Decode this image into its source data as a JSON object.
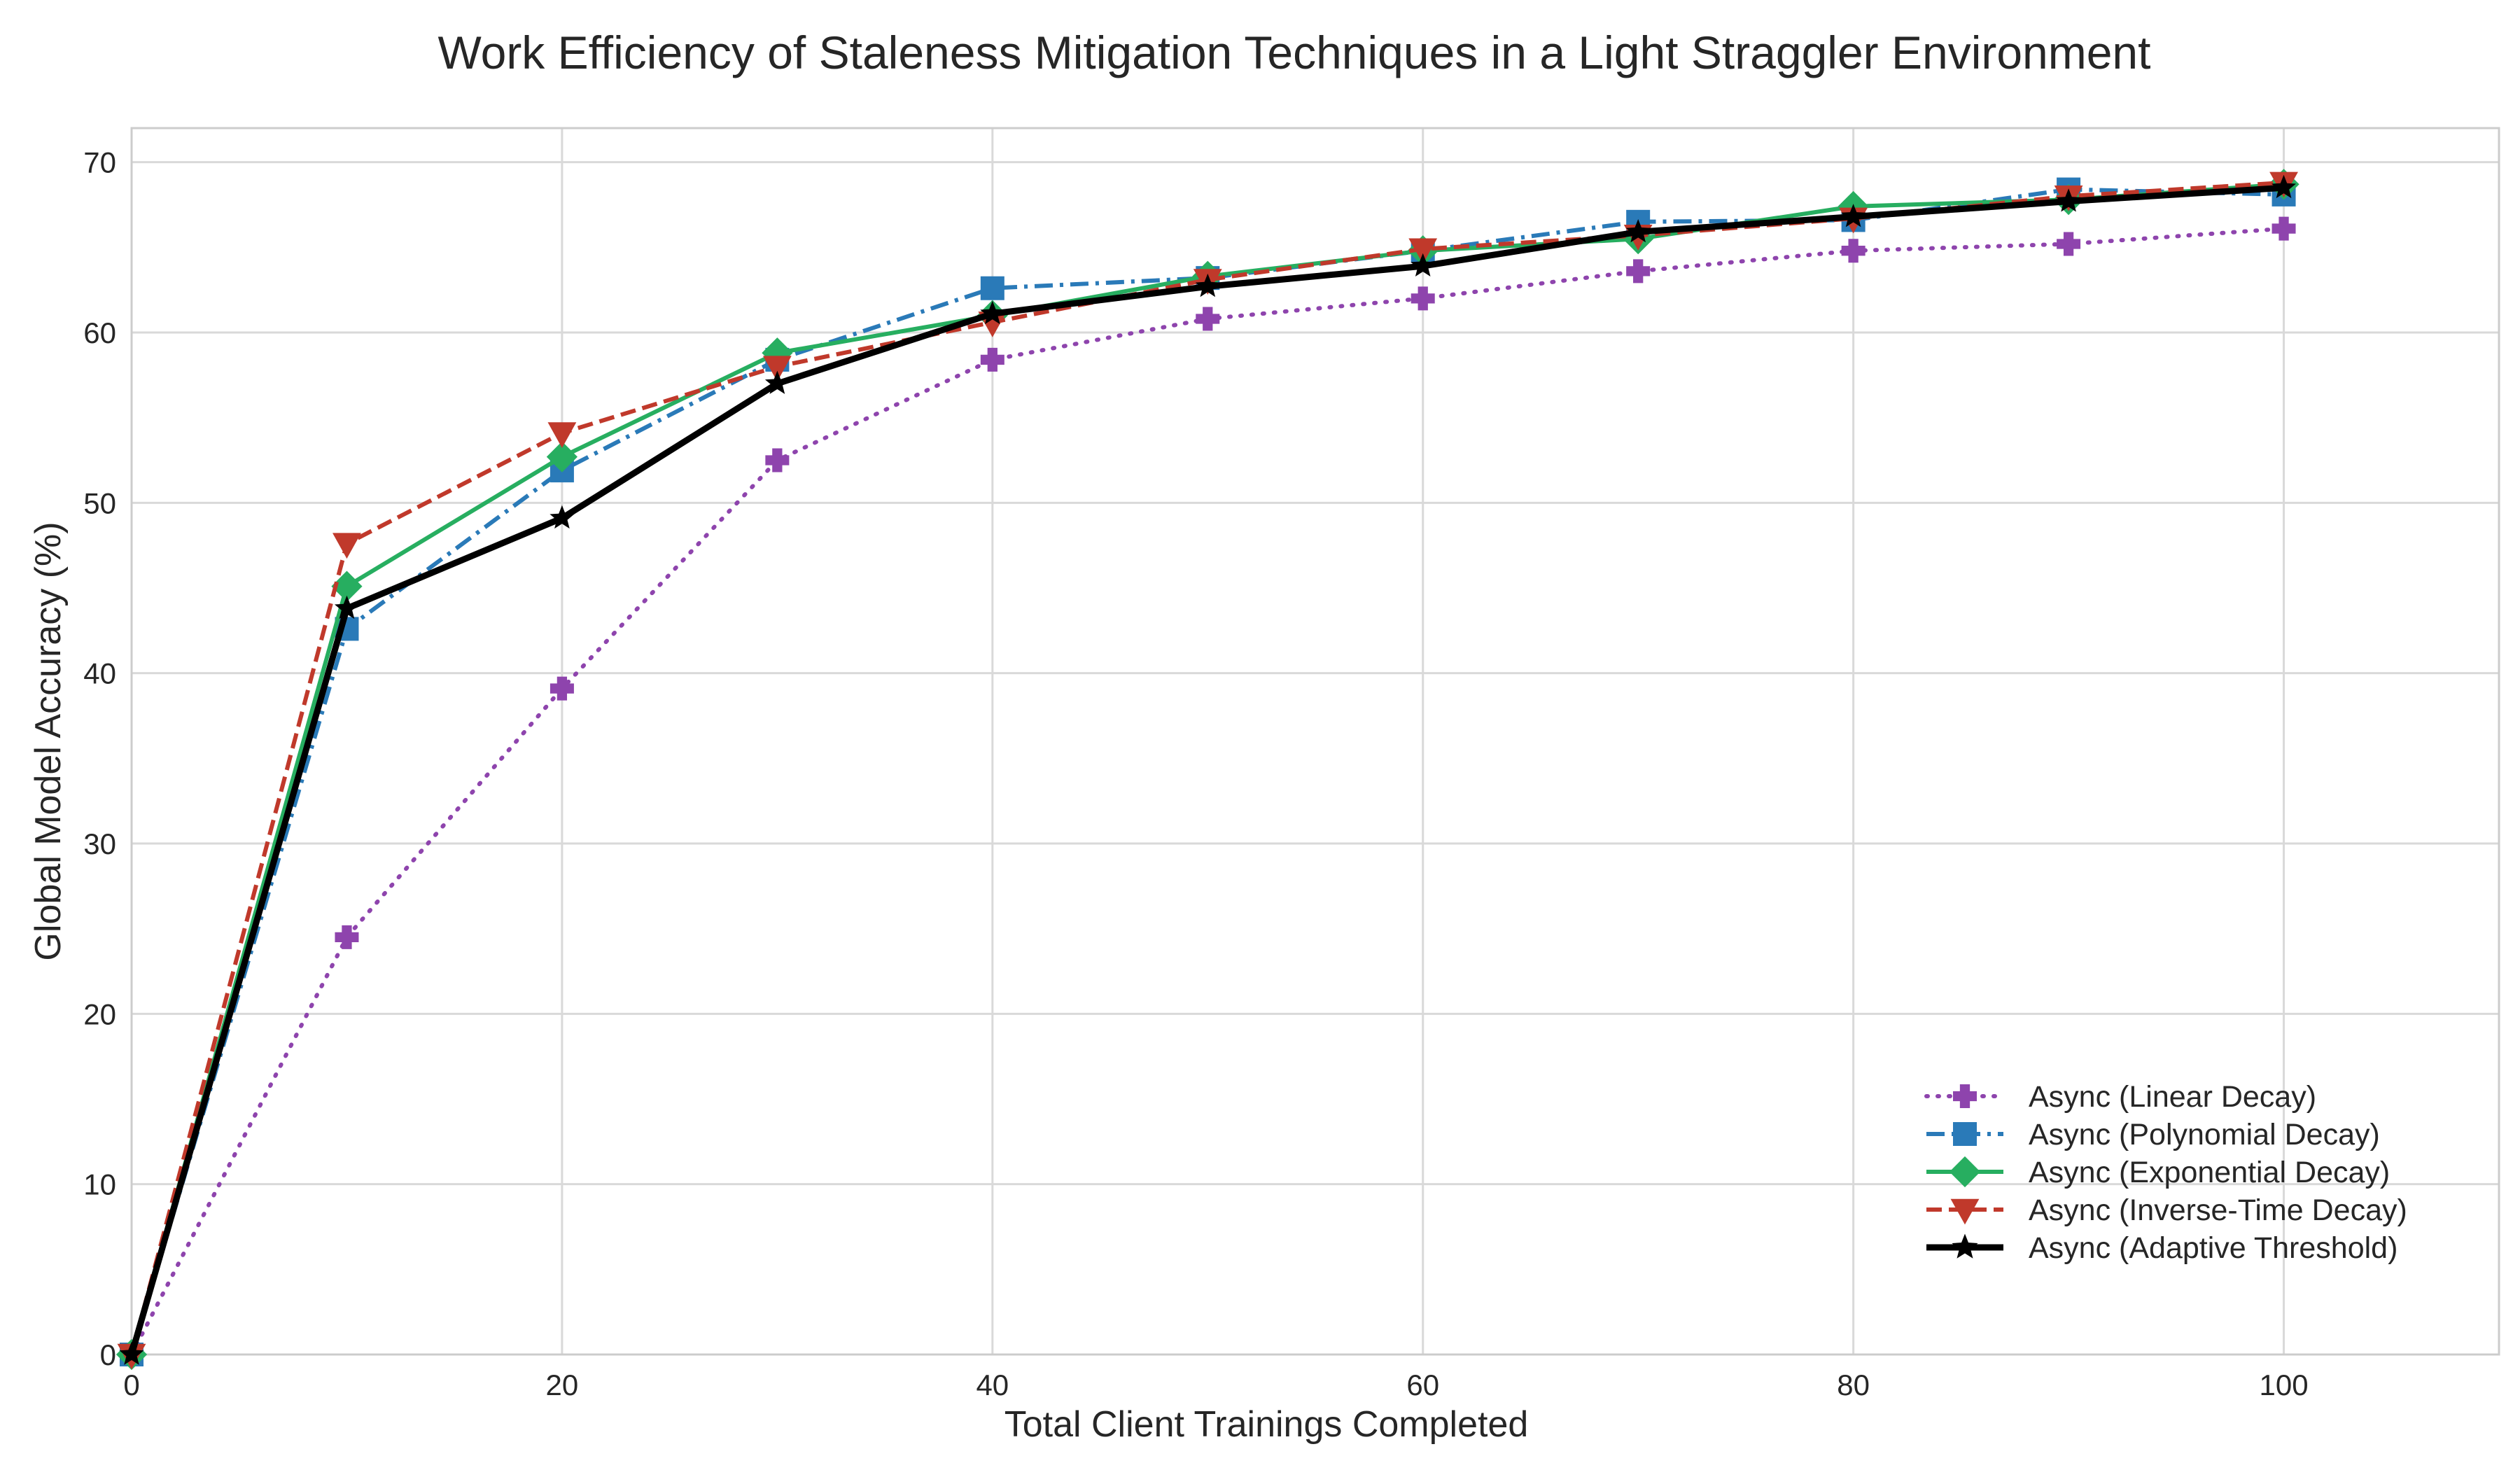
{
  "chart_data": {
    "type": "line",
    "title": "Work Efficiency of Staleness Mitigation Techniques in a Light Straggler Environment",
    "xlabel": "Total Client Trainings Completed",
    "ylabel": "Global Model Accuracy (%)",
    "xlim": [
      0,
      110
    ],
    "ylim": [
      0,
      72
    ],
    "xticks": [
      0,
      20,
      40,
      60,
      80,
      100
    ],
    "yticks": [
      0,
      10,
      20,
      30,
      40,
      50,
      60,
      70
    ],
    "grid": true,
    "legend_position": "lower-right",
    "x": [
      0,
      10,
      20,
      30,
      40,
      50,
      60,
      70,
      80,
      90,
      100
    ],
    "series": [
      {
        "name": "Async (Linear Decay)",
        "color": "#8e44ad",
        "line_style": "dotted",
        "marker": "plus",
        "values": [
          0,
          24.5,
          39.1,
          52.5,
          58.4,
          60.8,
          62.0,
          63.6,
          64.8,
          65.2,
          66.1
        ]
      },
      {
        "name": "Async (Polynomial Decay)",
        "color": "#2a7ab8",
        "line_style": "dashdot",
        "marker": "square",
        "values": [
          0,
          42.6,
          51.9,
          58.4,
          62.6,
          63.2,
          64.8,
          66.5,
          66.6,
          68.4,
          68.1
        ]
      },
      {
        "name": "Async (Exponential Decay)",
        "color": "#27ae60",
        "line_style": "solid",
        "marker": "diamond",
        "values": [
          0,
          45.1,
          52.7,
          58.8,
          61.0,
          63.3,
          64.8,
          65.5,
          67.4,
          67.8,
          68.7
        ]
      },
      {
        "name": "Async (Inverse-Time Decay)",
        "color": "#c0392b",
        "line_style": "dashed",
        "marker": "triangle-down",
        "values": [
          0,
          47.6,
          54.1,
          58.0,
          60.6,
          63.1,
          64.9,
          65.7,
          66.7,
          68.0,
          68.8
        ]
      },
      {
        "name": "Async (Adaptive Threshold)",
        "color": "#000000",
        "line_style": "solid-thick",
        "marker": "star",
        "values": [
          0,
          43.8,
          49.1,
          57.0,
          61.1,
          62.7,
          63.9,
          65.9,
          66.8,
          67.7,
          68.5
        ]
      }
    ]
  }
}
